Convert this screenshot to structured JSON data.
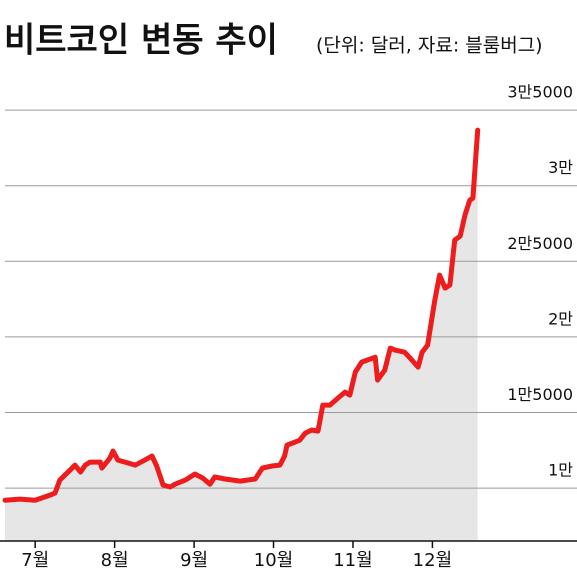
{
  "chart_data": {
    "type": "line",
    "title": "비트코인 변동 추이",
    "subtitle": "(단위: 달러, 자료: 블룸버그)",
    "color": "#ee1c1c",
    "area_color": "#e6e6e6",
    "grid": true,
    "x": [
      6.62,
      6.81,
      7,
      7.19,
      7.25,
      7.31,
      7.44,
      7.5,
      7.57,
      7.63,
      7.69,
      7.82,
      7.84,
      7.94,
      7.98,
      8.04,
      8.13,
      8.26,
      8.38,
      8.47,
      8.53,
      8.61,
      8.7,
      8.76,
      8.89,
      9.01,
      9.11,
      9.2,
      9.26,
      9.39,
      9.58,
      9.77,
      9.86,
      9.98,
      10.08,
      10.14,
      10.17,
      10.27,
      10.33,
      10.4,
      10.48,
      10.56,
      10.62,
      10.71,
      10.81,
      10.9,
      10.96,
      11.03,
      11.11,
      11.28,
      11.31,
      11.4,
      11.47,
      11.53,
      11.65,
      11.72,
      11.82,
      11.87,
      11.94,
      12.03,
      12.09,
      12.16,
      12.22,
      12.28,
      12.35,
      12.41,
      12.47,
      12.51,
      12.57
    ],
    "values": [
      9200,
      9270,
      9200,
      9540,
      9670,
      10530,
      11190,
      11520,
      11060,
      11520,
      11720,
      11720,
      11320,
      11980,
      12450,
      11850,
      11720,
      11520,
      11850,
      12120,
      11460,
      10200,
      10070,
      10260,
      10530,
      10930,
      10660,
      10260,
      10730,
      10600,
      10460,
      10600,
      11320,
      11460,
      11520,
      12120,
      12840,
      13040,
      13170,
      13640,
      13840,
      13770,
      15490,
      15490,
      15950,
      16350,
      16150,
      17670,
      18330,
      18660,
      17140,
      17800,
      19260,
      19130,
      18990,
      18600,
      18000,
      18990,
      19460,
      22430,
      24090,
      23230,
      23430,
      26400,
      26670,
      28060,
      29050,
      29180,
      33680
    ],
    "xlim": [
      6.62,
      13.82
    ],
    "xticks": [
      {
        "value": 7,
        "label": "7월"
      },
      {
        "value": 8,
        "label": "8월"
      },
      {
        "value": 9,
        "label": "9월"
      },
      {
        "value": 10,
        "label": "10월"
      },
      {
        "value": 11,
        "label": "11월"
      },
      {
        "value": 12,
        "label": "12월"
      }
    ],
    "ylim": [
      6500,
      36000
    ],
    "yticks": [
      {
        "value": 10000,
        "label": "1만"
      },
      {
        "value": 15000,
        "label": "1만5000"
      },
      {
        "value": 20000,
        "label": "2만"
      },
      {
        "value": 25000,
        "label": "2만5000"
      },
      {
        "value": 30000,
        "label": "3만"
      },
      {
        "value": 35000,
        "label": "3만5000"
      }
    ]
  }
}
